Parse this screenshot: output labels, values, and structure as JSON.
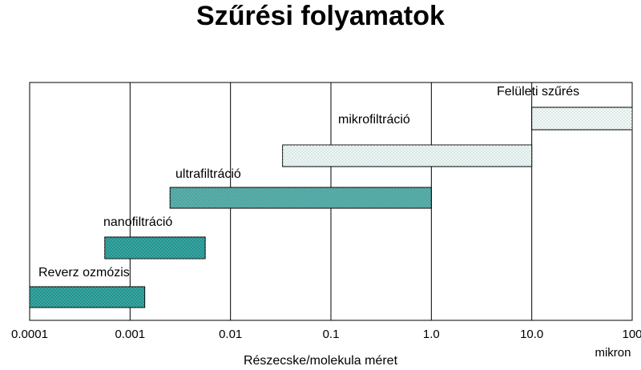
{
  "chart_data": {
    "type": "range-bar",
    "title": "Szűrési folyamatok",
    "xlabel": "Részecske/molekula méret",
    "unit": "mikron",
    "xscale": "log",
    "xlim": [
      0.0001,
      100
    ],
    "xticks": [
      0.0001,
      0.001,
      0.01,
      0.1,
      {
        "value": 1,
        "label": "1.0"
      },
      {
        "value": 10,
        "label": "10.0"
      },
      100
    ],
    "categories": [
      "Reverz ozmózis",
      "nanofiltráció",
      "ultrafiltráció",
      "mikrofiltráció",
      "Felületi szűrés"
    ],
    "starts": [
      0.0001,
      0.00056,
      0.0025,
      0.033,
      10
    ],
    "ends": [
      0.0014,
      0.0056,
      1,
      10,
      100
    ],
    "colors": [
      "#1e9692",
      "#1e9692",
      "#4aa6a2",
      "#eef7f5",
      "#f4f9f8"
    ],
    "grid": true
  }
}
